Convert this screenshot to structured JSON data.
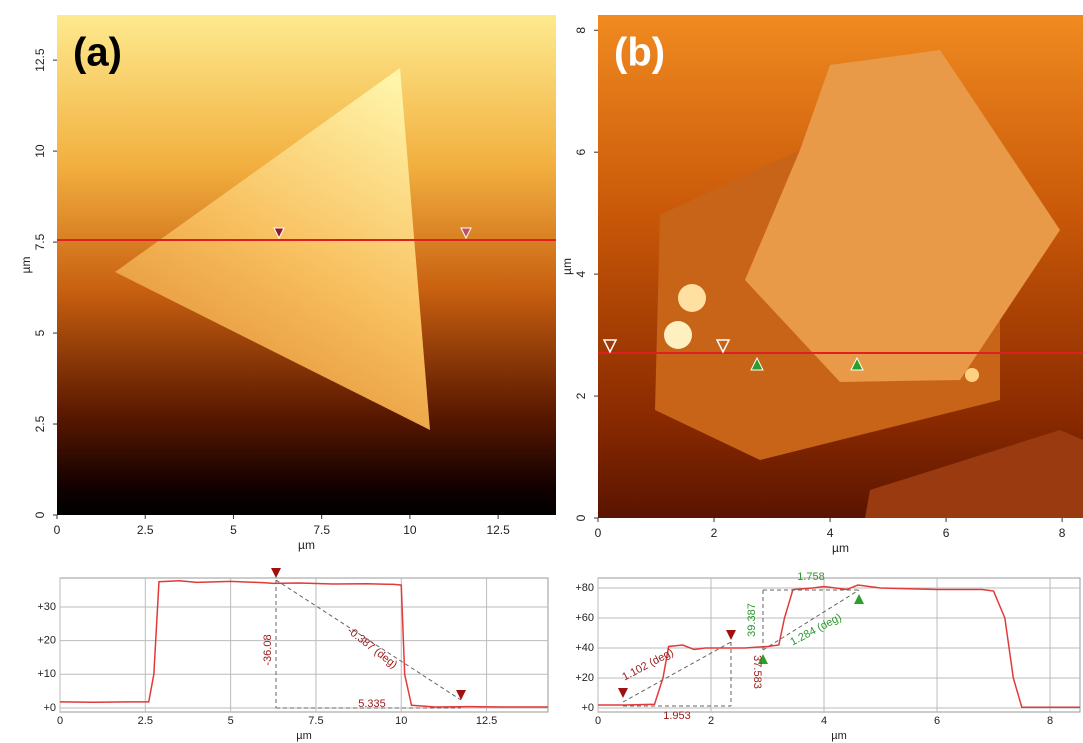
{
  "chart_data": [
    {
      "type": "image",
      "label": "(a)",
      "xlabel": "µm",
      "ylabel": "µm",
      "xlim": [
        0,
        14.14
      ],
      "ylim": [
        0,
        13.74
      ],
      "xticks": [
        0,
        2.5,
        5,
        7.5,
        10,
        12.5
      ],
      "yticks": [
        0,
        2.5,
        5,
        7.5,
        10,
        12.5
      ]
    },
    {
      "type": "image",
      "label": "(b)",
      "xlabel": "µm",
      "ylabel": "µm",
      "xlim": [
        0,
        8.36
      ],
      "ylim": [
        0,
        8.25
      ],
      "xticks": [
        0,
        2,
        4,
        6,
        8
      ],
      "yticks": [
        0,
        2,
        4,
        6,
        8
      ]
    },
    {
      "type": "line",
      "xlabel": "µm",
      "grid": true,
      "xlim": [
        0,
        14.3
      ],
      "ylim": [
        -1.2,
        38.6
      ],
      "xticks": [
        0,
        2.5,
        5,
        7.5,
        10,
        12.5
      ],
      "yticks": [
        {
          "value": 0,
          "label": "+0"
        },
        {
          "value": 10,
          "label": "+10"
        },
        {
          "value": 20,
          "label": "+20"
        },
        {
          "value": 30,
          "label": "+30"
        }
      ],
      "x": [
        0,
        1,
        2,
        2.6,
        2.75,
        2.9,
        3.5,
        4,
        5,
        6,
        6.25,
        7,
        8,
        9,
        9.8,
        10.0,
        10.1,
        10.3,
        11,
        12,
        13,
        14.3
      ],
      "series": [
        {
          "color": "#e23a3a",
          "values": [
            1.8,
            1.7,
            1.8,
            1.8,
            10,
            37.5,
            37.8,
            37.3,
            37.6,
            37.2,
            37.0,
            37.1,
            36.8,
            36.9,
            36.7,
            36.5,
            10,
            0.8,
            0.3,
            0.4,
            0.3,
            0.3
          ]
        }
      ],
      "annotations": [
        "-36.08",
        "-0.387 (deg)",
        "5.335"
      ],
      "annotation_colors": [
        "#9a1a1a",
        "#9a1a1a",
        "#9a1a1a"
      ]
    },
    {
      "type": "line",
      "xlabel": "µm",
      "grid": true,
      "xlim": [
        0,
        8.53
      ],
      "ylim": [
        -2.7,
        86.7
      ],
      "xticks": [
        0,
        2,
        4,
        6,
        8
      ],
      "yticks": [
        {
          "value": 0,
          "label": "+0"
        },
        {
          "value": 20,
          "label": "+20"
        },
        {
          "value": 40,
          "label": "+40"
        },
        {
          "value": 60,
          "label": "+60"
        },
        {
          "value": 80,
          "label": "+80"
        }
      ],
      "x": [
        0,
        0.5,
        1.0,
        1.15,
        1.25,
        1.5,
        1.7,
        1.9,
        2.2,
        2.6,
        3.0,
        3.2,
        3.3,
        3.45,
        3.8,
        4.0,
        4.4,
        4.6,
        5,
        6,
        6.8,
        7.0,
        7.2,
        7.35,
        7.5,
        8,
        8.53
      ],
      "series": [
        {
          "color": "#e23a3a",
          "values": [
            2,
            2,
            2.5,
            20,
            41,
            42,
            39,
            40,
            40,
            40,
            41,
            42,
            60,
            79,
            80,
            81,
            79,
            82,
            80,
            79,
            79,
            78,
            60,
            20,
            0.5,
            0.5,
            0.5
          ]
        }
      ],
      "annotations": [
        "1.102 (deg)",
        "1.953",
        "37.583",
        "39.387",
        "1.758",
        "1.284 (deg)"
      ],
      "annotation_colors": [
        "#9a1a1a",
        "#9a1a1a",
        "#9a1a1a",
        "#2a9a2a",
        "#2a9a2a",
        "#2a9a2a"
      ]
    }
  ]
}
